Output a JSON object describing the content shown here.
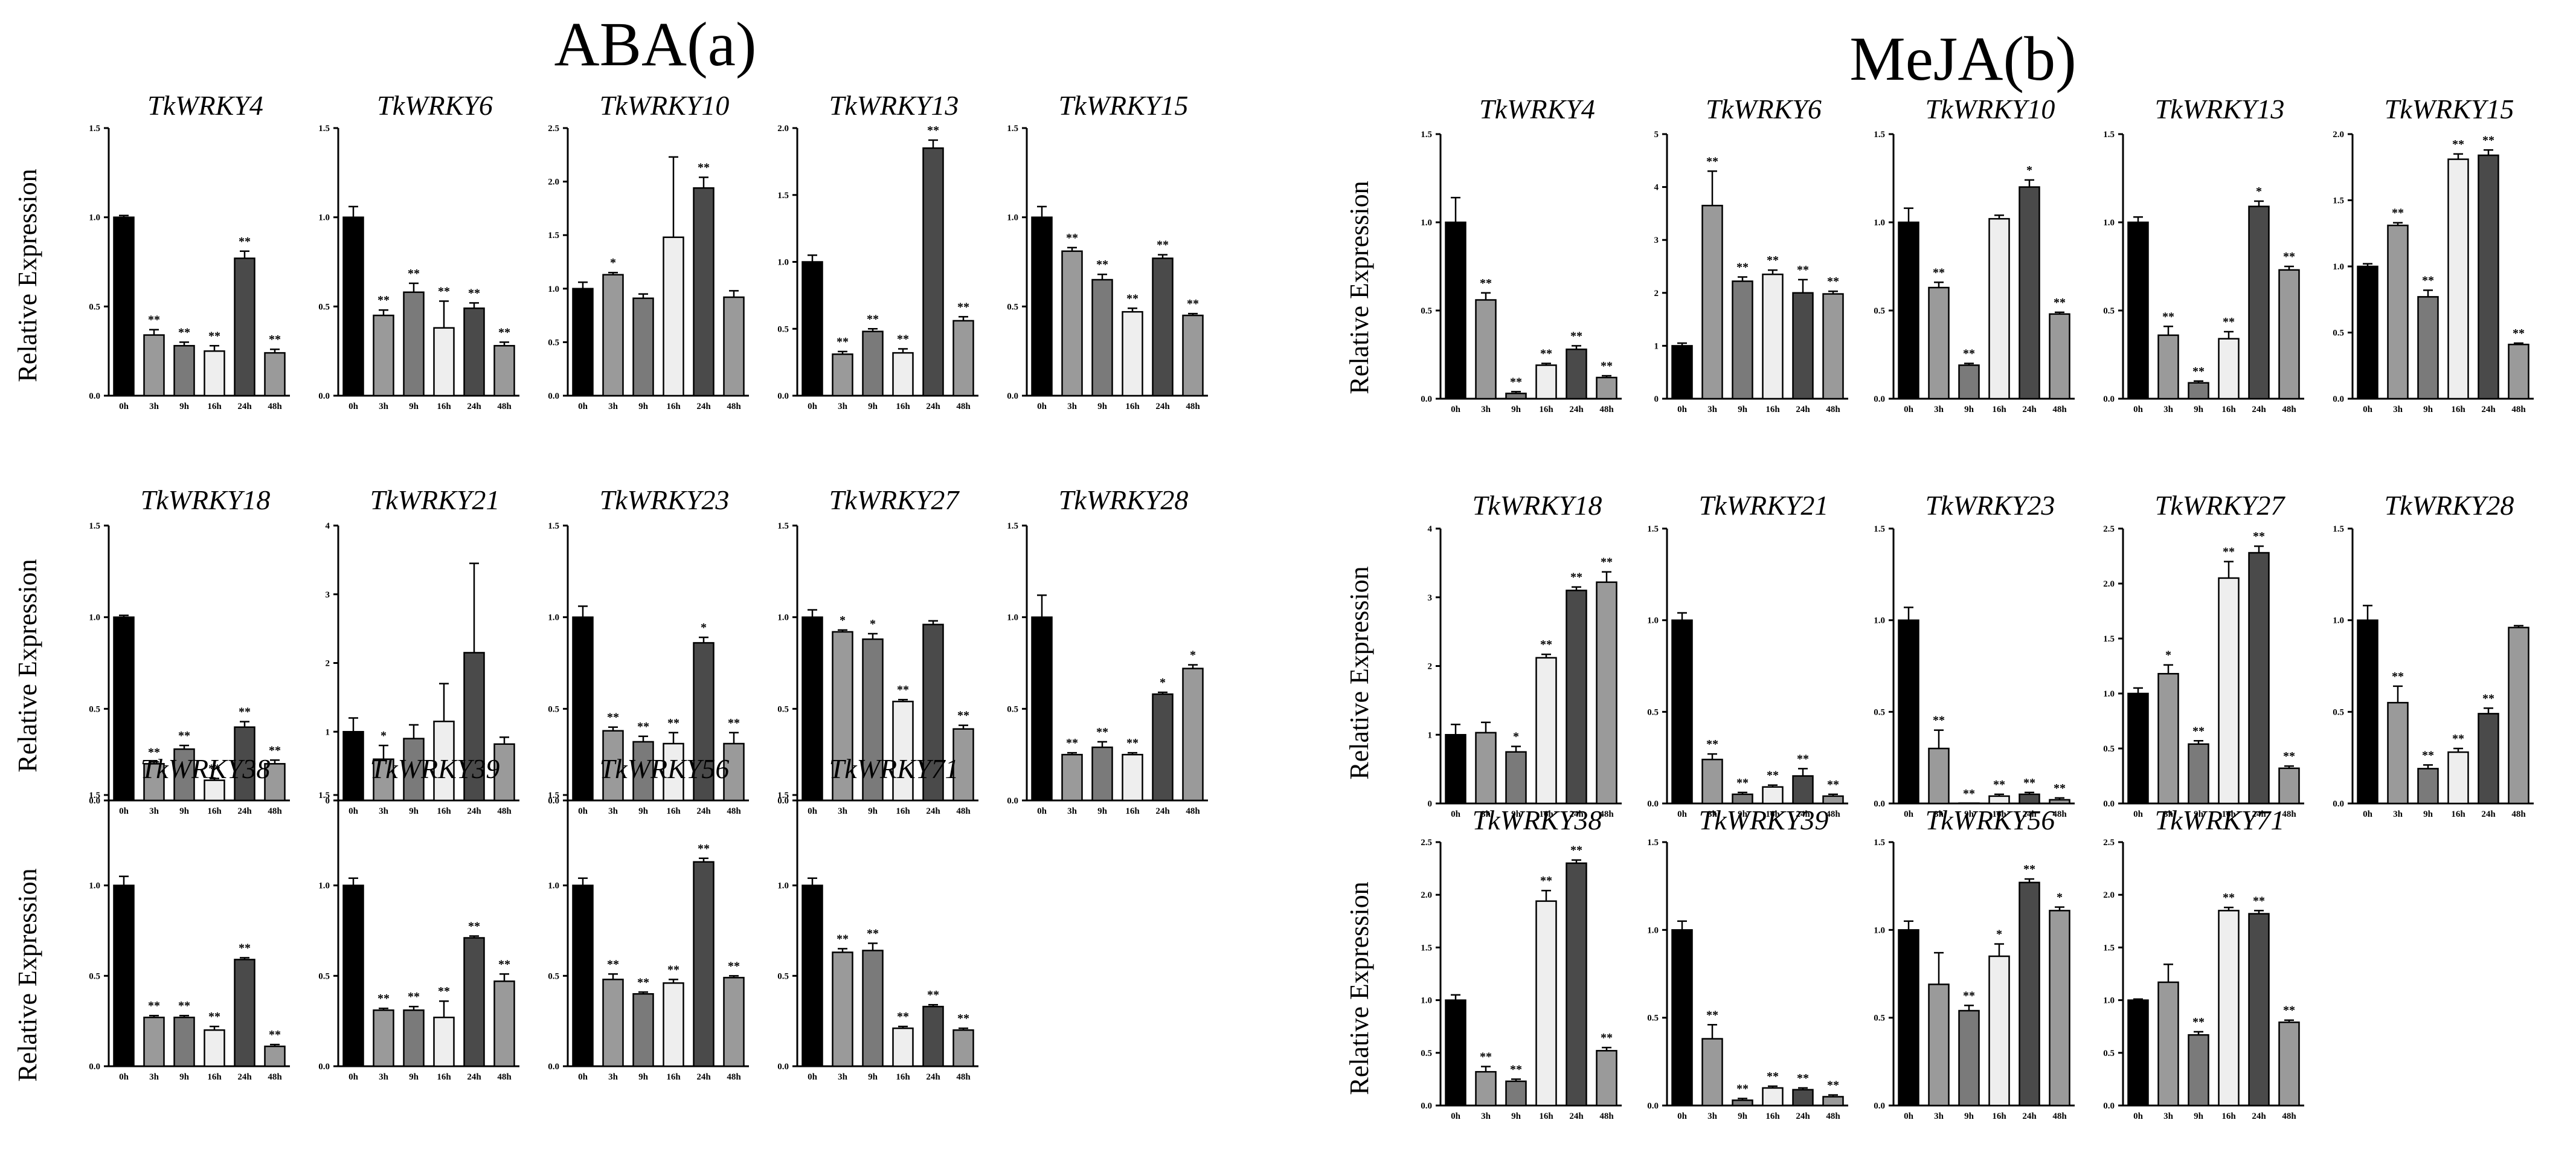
{
  "colors": {
    "bars": [
      "#000000",
      "#9a9a9a",
      "#7a7a7a",
      "#eeeeee",
      "#4a4a4a",
      "#9a9a9a"
    ],
    "stroke": "#000000"
  },
  "chart_data": [
    {
      "panel": "ABA(a)",
      "title": "ABA(a)",
      "type": "bar",
      "ylabel": "Relative Expression",
      "categories": [
        "0h",
        "3h",
        "9h",
        "16h",
        "24h",
        "48h"
      ],
      "charts": [
        {
          "gene": "TkWRKY4",
          "ylim": [
            0,
            1.5
          ],
          "yticks": [
            "0.0",
            "0.5",
            "1.0",
            "1.5"
          ],
          "values": [
            1.0,
            0.34,
            0.28,
            0.25,
            0.77,
            0.24
          ],
          "errors": [
            0.01,
            0.03,
            0.02,
            0.03,
            0.04,
            0.02
          ],
          "sig": [
            "",
            "**",
            "**",
            "**",
            "**",
            "**"
          ]
        },
        {
          "gene": "TkWRKY6",
          "ylim": [
            0,
            1.5
          ],
          "yticks": [
            "0.0",
            "0.5",
            "1.0",
            "1.5"
          ],
          "values": [
            1.0,
            0.45,
            0.58,
            0.38,
            0.49,
            0.28
          ],
          "errors": [
            0.06,
            0.03,
            0.05,
            0.15,
            0.03,
            0.02
          ],
          "sig": [
            "",
            "**",
            "**",
            "**",
            "**",
            "**"
          ]
        },
        {
          "gene": "TkWRKY10",
          "ylim": [
            0,
            2.5
          ],
          "yticks": [
            "0.0",
            "0.5",
            "1.0",
            "1.5",
            "2.0",
            "2.5"
          ],
          "values": [
            1.0,
            1.13,
            0.91,
            1.48,
            1.94,
            0.92
          ],
          "errors": [
            0.06,
            0.02,
            0.04,
            0.75,
            0.1,
            0.06
          ],
          "sig": [
            "",
            "*",
            "",
            "",
            "**",
            ""
          ]
        },
        {
          "gene": "TkWRKY13",
          "ylim": [
            0,
            2.0
          ],
          "yticks": [
            "0.0",
            "0.5",
            "1.0",
            "1.5",
            "2.0"
          ],
          "values": [
            1.0,
            0.31,
            0.48,
            0.32,
            1.85,
            0.56
          ],
          "errors": [
            0.05,
            0.02,
            0.02,
            0.03,
            0.06,
            0.03
          ],
          "sig": [
            "",
            "**",
            "**",
            "**",
            "**",
            "**"
          ]
        },
        {
          "gene": "TkWRKY15",
          "ylim": [
            0,
            1.5
          ],
          "yticks": [
            "0.0",
            "0.5",
            "1.0",
            "1.5"
          ],
          "values": [
            1.0,
            0.81,
            0.65,
            0.47,
            0.77,
            0.45
          ],
          "errors": [
            0.06,
            0.02,
            0.03,
            0.02,
            0.02,
            0.01
          ],
          "sig": [
            "",
            "**",
            "**",
            "**",
            "**",
            "**"
          ]
        },
        {
          "gene": "TkWRKY18",
          "ylim": [
            0,
            1.5
          ],
          "yticks": [
            "0.0",
            "0.5",
            "1.0",
            "1.5"
          ],
          "values": [
            1.0,
            0.2,
            0.28,
            0.11,
            0.4,
            0.2
          ],
          "errors": [
            0.01,
            0.01,
            0.02,
            0.01,
            0.03,
            0.02
          ],
          "sig": [
            "",
            "**",
            "**",
            "**",
            "**",
            "**"
          ]
        },
        {
          "gene": "TkWRKY21",
          "ylim": [
            0,
            4
          ],
          "yticks": [
            "0",
            "1",
            "2",
            "3",
            "4"
          ],
          "values": [
            1.0,
            0.6,
            0.9,
            1.15,
            2.15,
            0.82
          ],
          "errors": [
            0.2,
            0.2,
            0.2,
            0.55,
            1.3,
            0.1
          ],
          "sig": [
            "",
            "*",
            "",
            "",
            "",
            ""
          ]
        },
        {
          "gene": "TkWRKY23",
          "ylim": [
            0,
            1.5
          ],
          "yticks": [
            "0.0",
            "0.5",
            "1.0",
            "1.5"
          ],
          "values": [
            1.0,
            0.38,
            0.32,
            0.31,
            0.86,
            0.31
          ],
          "errors": [
            0.06,
            0.02,
            0.03,
            0.06,
            0.03,
            0.06
          ],
          "sig": [
            "",
            "**",
            "**",
            "**",
            "*",
            "**"
          ]
        },
        {
          "gene": "TkWRKY27",
          "ylim": [
            0,
            1.5
          ],
          "yticks": [
            "0.0",
            "0.5",
            "1.0",
            "1.5"
          ],
          "values": [
            1.0,
            0.92,
            0.88,
            0.54,
            0.96,
            0.39
          ],
          "errors": [
            0.04,
            0.01,
            0.03,
            0.01,
            0.02,
            0.02
          ],
          "sig": [
            "",
            "*",
            "*",
            "**",
            "",
            "**"
          ]
        },
        {
          "gene": "TkWRKY28",
          "ylim": [
            0,
            1.5
          ],
          "yticks": [
            "0.0",
            "0.5",
            "1.0",
            "1.5"
          ],
          "values": [
            1.0,
            0.25,
            0.29,
            0.25,
            0.58,
            0.72
          ],
          "errors": [
            0.12,
            0.01,
            0.03,
            0.01,
            0.01,
            0.02
          ],
          "sig": [
            "",
            "**",
            "**",
            "**",
            "*",
            "*"
          ]
        },
        {
          "gene": "TkWRKY38",
          "ylim": [
            0,
            1.5
          ],
          "yticks": [
            "0.0",
            "0.5",
            "1.0",
            "1.5"
          ],
          "values": [
            1.0,
            0.27,
            0.27,
            0.2,
            0.59,
            0.11
          ],
          "errors": [
            0.05,
            0.01,
            0.01,
            0.02,
            0.01,
            0.01
          ],
          "sig": [
            "",
            "**",
            "**",
            "**",
            "**",
            "**"
          ]
        },
        {
          "gene": "TkWRKY39",
          "ylim": [
            0,
            1.5
          ],
          "yticks": [
            "0.0",
            "0.5",
            "1.0",
            "1.5"
          ],
          "values": [
            1.0,
            0.31,
            0.31,
            0.27,
            0.71,
            0.47
          ],
          "errors": [
            0.04,
            0.01,
            0.02,
            0.09,
            0.01,
            0.04
          ],
          "sig": [
            "",
            "**",
            "**",
            "**",
            "**",
            "**"
          ]
        },
        {
          "gene": "TkWRKY56",
          "ylim": [
            0,
            1.5
          ],
          "yticks": [
            "0.0",
            "0.5",
            "1.0",
            "1.5"
          ],
          "values": [
            1.0,
            0.48,
            0.4,
            0.46,
            1.13,
            0.49
          ],
          "errors": [
            0.04,
            0.03,
            0.01,
            0.02,
            0.02,
            0.01
          ],
          "sig": [
            "",
            "**",
            "**",
            "**",
            "**",
            "**"
          ]
        },
        {
          "gene": "TkWRKY71",
          "ylim": [
            0,
            1.5
          ],
          "yticks": [
            "0.0",
            "0.5",
            "1.0",
            "1.5"
          ],
          "values": [
            1.0,
            0.63,
            0.64,
            0.21,
            0.33,
            0.2
          ],
          "errors": [
            0.04,
            0.02,
            0.04,
            0.01,
            0.01,
            0.01
          ],
          "sig": [
            "",
            "**",
            "**",
            "**",
            "**",
            "**"
          ]
        }
      ]
    },
    {
      "panel": "MeJA(b)",
      "title": "MeJA(b)",
      "type": "bar",
      "ylabel": "Relative Expression",
      "categories": [
        "0h",
        "3h",
        "9h",
        "16h",
        "24h",
        "48h"
      ],
      "charts": [
        {
          "gene": "TkWRKY4",
          "ylim": [
            0,
            1.5
          ],
          "yticks": [
            "0.0",
            "0.5",
            "1.0",
            "1.5"
          ],
          "values": [
            1.0,
            0.56,
            0.03,
            0.19,
            0.28,
            0.12
          ],
          "errors": [
            0.14,
            0.04,
            0.01,
            0.01,
            0.02,
            0.01
          ],
          "sig": [
            "",
            "**",
            "**",
            "**",
            "**",
            "**"
          ]
        },
        {
          "gene": "TkWRKY6",
          "ylim": [
            0,
            5
          ],
          "yticks": [
            "0",
            "1",
            "2",
            "3",
            "4",
            "5"
          ],
          "values": [
            1.0,
            3.65,
            2.22,
            2.35,
            2.0,
            1.98
          ],
          "errors": [
            0.05,
            0.65,
            0.08,
            0.08,
            0.25,
            0.05
          ],
          "sig": [
            "",
            "**",
            "**",
            "**",
            "**",
            "**"
          ]
        },
        {
          "gene": "TkWRKY10",
          "ylim": [
            0,
            1.5
          ],
          "yticks": [
            "0.0",
            "0.5",
            "1.0",
            "1.5"
          ],
          "values": [
            1.0,
            0.63,
            0.19,
            1.02,
            1.2,
            0.48
          ],
          "errors": [
            0.08,
            0.03,
            0.01,
            0.02,
            0.04,
            0.01
          ],
          "sig": [
            "",
            "**",
            "**",
            "",
            "*",
            "**"
          ]
        },
        {
          "gene": "TkWRKY13",
          "ylim": [
            0,
            1.5
          ],
          "yticks": [
            "0.0",
            "0.5",
            "1.0",
            "1.5"
          ],
          "values": [
            1.0,
            0.36,
            0.09,
            0.34,
            1.09,
            0.73
          ],
          "errors": [
            0.03,
            0.05,
            0.01,
            0.04,
            0.03,
            0.02
          ],
          "sig": [
            "",
            "**",
            "**",
            "**",
            "*",
            "**"
          ]
        },
        {
          "gene": "TkWRKY15",
          "ylim": [
            0,
            2.0
          ],
          "yticks": [
            "0.0",
            "0.5",
            "1.0",
            "1.5",
            "2.0"
          ],
          "values": [
            1.0,
            1.31,
            0.77,
            1.81,
            1.84,
            0.41
          ],
          "errors": [
            0.02,
            0.02,
            0.05,
            0.04,
            0.04,
            0.01
          ],
          "sig": [
            "",
            "**",
            "**",
            "**",
            "**",
            "**"
          ]
        },
        {
          "gene": "TkWRKY18",
          "ylim": [
            0,
            4
          ],
          "yticks": [
            "0",
            "1",
            "2",
            "3",
            "4"
          ],
          "values": [
            1.0,
            1.03,
            0.75,
            2.12,
            3.1,
            3.22
          ],
          "errors": [
            0.15,
            0.15,
            0.08,
            0.05,
            0.05,
            0.15
          ],
          "sig": [
            "",
            "",
            "*",
            "**",
            "**",
            "**"
          ]
        },
        {
          "gene": "TkWRKY21",
          "ylim": [
            0,
            1.5
          ],
          "yticks": [
            "0.0",
            "0.5",
            "1.0",
            "1.5"
          ],
          "values": [
            1.0,
            0.24,
            0.05,
            0.09,
            0.15,
            0.04
          ],
          "errors": [
            0.04,
            0.03,
            0.01,
            0.01,
            0.04,
            0.01
          ],
          "sig": [
            "",
            "**",
            "**",
            "**",
            "**",
            "**"
          ]
        },
        {
          "gene": "TkWRKY23",
          "ylim": [
            0,
            1.5
          ],
          "yticks": [
            "0.0",
            "0.5",
            "1.0",
            "1.5"
          ],
          "values": [
            1.0,
            0.3,
            0.0,
            0.04,
            0.05,
            0.02
          ],
          "errors": [
            0.07,
            0.1,
            0.0,
            0.01,
            0.01,
            0.01
          ],
          "sig": [
            "",
            "**",
            "**",
            "**",
            "**",
            "**"
          ]
        },
        {
          "gene": "TkWRKY27",
          "ylim": [
            0,
            2.5
          ],
          "yticks": [
            "0.0",
            "0.5",
            "1.0",
            "1.5",
            "2.0",
            "2.5"
          ],
          "values": [
            1.0,
            1.18,
            0.54,
            2.05,
            2.28,
            0.32
          ],
          "errors": [
            0.05,
            0.08,
            0.03,
            0.15,
            0.06,
            0.02
          ],
          "sig": [
            "",
            "*",
            "**",
            "**",
            "**",
            "**"
          ]
        },
        {
          "gene": "TkWRKY28",
          "ylim": [
            0,
            1.5
          ],
          "yticks": [
            "0.0",
            "0.5",
            "1.0",
            "1.5"
          ],
          "values": [
            1.0,
            0.55,
            0.19,
            0.28,
            0.49,
            0.96
          ],
          "errors": [
            0.08,
            0.09,
            0.02,
            0.02,
            0.03,
            0.01
          ],
          "sig": [
            "",
            "**",
            "**",
            "**",
            "**",
            ""
          ]
        },
        {
          "gene": "TkWRKY38",
          "ylim": [
            0,
            2.5
          ],
          "yticks": [
            "0.0",
            "0.5",
            "1.0",
            "1.5",
            "2.0",
            "2.5"
          ],
          "values": [
            1.0,
            0.32,
            0.23,
            1.94,
            2.3,
            0.52
          ],
          "errors": [
            0.05,
            0.05,
            0.02,
            0.1,
            0.03,
            0.03
          ],
          "sig": [
            "",
            "**",
            "**",
            "**",
            "**",
            "**"
          ]
        },
        {
          "gene": "TkWRKY39",
          "ylim": [
            0,
            1.5
          ],
          "yticks": [
            "0.0",
            "0.5",
            "1.0",
            "1.5"
          ],
          "values": [
            1.0,
            0.38,
            0.03,
            0.1,
            0.09,
            0.05
          ],
          "errors": [
            0.05,
            0.08,
            0.01,
            0.01,
            0.01,
            0.01
          ],
          "sig": [
            "",
            "**",
            "**",
            "**",
            "**",
            "**"
          ]
        },
        {
          "gene": "TkWRKY56",
          "ylim": [
            0,
            1.5
          ],
          "yticks": [
            "0.0",
            "0.5",
            "1.0",
            "1.5"
          ],
          "values": [
            1.0,
            0.69,
            0.54,
            0.85,
            1.27,
            1.11
          ],
          "errors": [
            0.05,
            0.18,
            0.03,
            0.07,
            0.02,
            0.02
          ],
          "sig": [
            "",
            "",
            "**",
            "*",
            "**",
            "*"
          ]
        },
        {
          "gene": "TkWRKY71",
          "ylim": [
            0,
            2.5
          ],
          "yticks": [
            "0.0",
            "0.5",
            "1.0",
            "1.5",
            "2.0",
            "2.5"
          ],
          "values": [
            1.0,
            1.17,
            0.67,
            1.85,
            1.82,
            0.79
          ],
          "errors": [
            0.01,
            0.17,
            0.03,
            0.03,
            0.03,
            0.02
          ],
          "sig": [
            "",
            "",
            "**",
            "**",
            "**",
            "**"
          ]
        }
      ]
    }
  ]
}
